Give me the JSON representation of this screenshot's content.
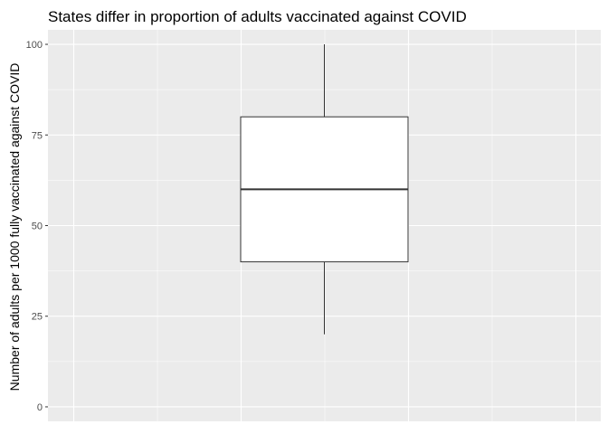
{
  "chart_data": {
    "type": "box",
    "title": "States differ in proportion of adults vaccinated against COVID",
    "xlabel": "",
    "ylabel": "Number of adults per 1000 fully vaccinated against COVID",
    "ylim": [
      -4,
      104
    ],
    "yticks": [
      0,
      25,
      50,
      75,
      100
    ],
    "ytick_labels": [
      "0",
      "25",
      "50",
      "75",
      "100"
    ],
    "grid": true,
    "box": {
      "min": 20,
      "q1": 40,
      "median": 60,
      "q3": 80,
      "max": 100
    },
    "colors": {
      "panel_background": "#ebebeb",
      "grid": "#ffffff",
      "box_fill": "#ffffff",
      "box_stroke": "#333333",
      "tick_mark": "#333333"
    }
  }
}
